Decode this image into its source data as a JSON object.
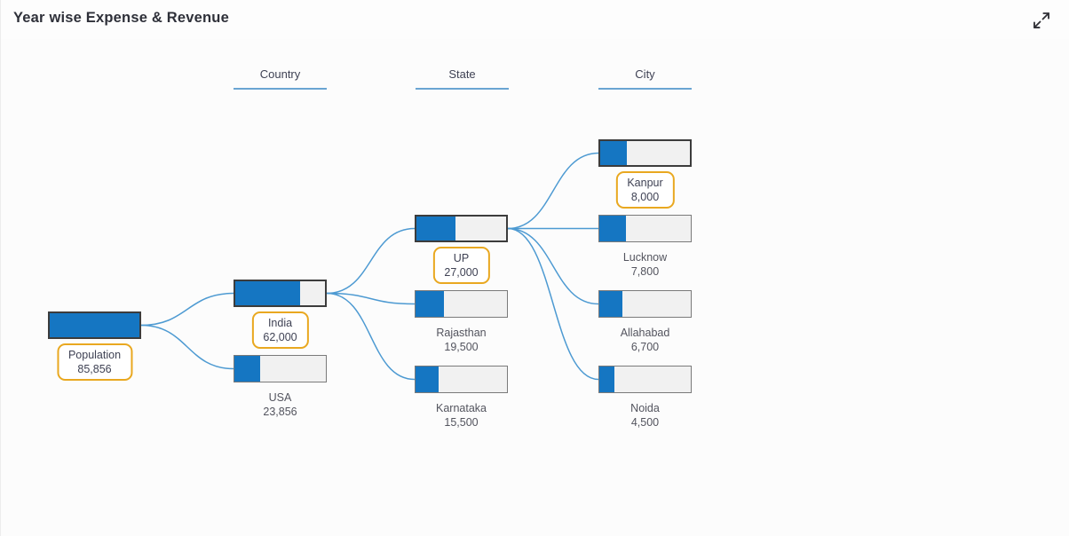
{
  "header": {
    "title": "Year wise Expense & Revenue",
    "expand_icon": "expand-diagonal-arrows"
  },
  "columns": [
    {
      "label": "Country"
    },
    {
      "label": "State"
    },
    {
      "label": "City"
    }
  ],
  "colors": {
    "bar_fill_blue": "#1576c2",
    "bar_empty_gray": "#f1f1f1",
    "selected_bar_border": "#3c3c3c",
    "normal_bar_border": "#7a7a7a",
    "connector_blue": "#4d9ad2",
    "highlight_gold": "#e9a820",
    "header_underline_blue": "#6aa5d2",
    "text_dark": "#3f4254"
  },
  "chart_data": {
    "type": "tree",
    "title": "Year wise Expense & Revenue",
    "levels": [
      "Population",
      "Country",
      "State",
      "City"
    ],
    "nodes": [
      {
        "id": "population",
        "label": "Population",
        "value": 85856,
        "value_text": "85,856",
        "level": 0,
        "parent": null,
        "selected": true
      },
      {
        "id": "india",
        "label": "India",
        "value": 62000,
        "value_text": "62,000",
        "level": 1,
        "parent": "population",
        "selected": true
      },
      {
        "id": "usa",
        "label": "USA",
        "value": 23856,
        "value_text": "23,856",
        "level": 1,
        "parent": "population",
        "selected": false
      },
      {
        "id": "up",
        "label": "UP",
        "value": 27000,
        "value_text": "27,000",
        "level": 2,
        "parent": "india",
        "selected": true
      },
      {
        "id": "rajasthan",
        "label": "Rajasthan",
        "value": 19500,
        "value_text": "19,500",
        "level": 2,
        "parent": "india",
        "selected": false
      },
      {
        "id": "karnataka",
        "label": "Karnataka",
        "value": 15500,
        "value_text": "15,500",
        "level": 2,
        "parent": "india",
        "selected": false
      },
      {
        "id": "kanpur",
        "label": "Kanpur",
        "value": 8000,
        "value_text": "8,000",
        "level": 3,
        "parent": "up",
        "selected": true
      },
      {
        "id": "lucknow",
        "label": "Lucknow",
        "value": 7800,
        "value_text": "7,800",
        "level": 3,
        "parent": "up",
        "selected": false
      },
      {
        "id": "allahabad",
        "label": "Allahabad",
        "value": 6700,
        "value_text": "6,700",
        "level": 3,
        "parent": "up",
        "selected": false
      },
      {
        "id": "noida",
        "label": "Noida",
        "value": 4500,
        "value_text": "4,500",
        "level": 3,
        "parent": "up",
        "selected": false
      }
    ]
  }
}
